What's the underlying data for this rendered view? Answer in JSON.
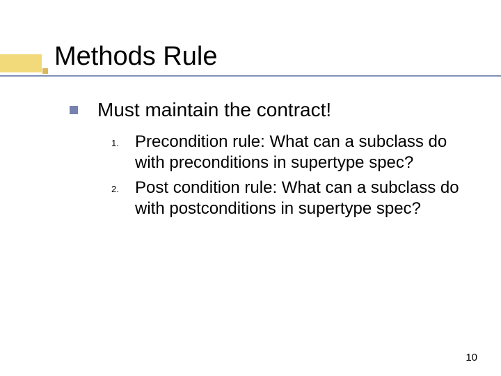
{
  "slide": {
    "title": "Methods Rule",
    "page_number": "10",
    "colors": {
      "accent_main": "#f2d97a",
      "accent_small": "#d8b85a",
      "underline": "#7f8fb8",
      "bullet": "#7882b0",
      "text": "#000000",
      "background": "#ffffff"
    },
    "typography": {
      "title_fontsize": 38,
      "level1_fontsize": 28,
      "level2_fontsize": 24,
      "marker_fontsize": 13
    },
    "bullets": {
      "level1": [
        {
          "text": "Must maintain the contract!"
        }
      ],
      "numbered": [
        {
          "marker": "1.",
          "text": "Precondition rule: What can a subclass do with preconditions in supertype spec?"
        },
        {
          "marker": "2.",
          "text": "Post condition rule: What can a subclass do with postconditions in supertype spec?"
        }
      ]
    }
  }
}
